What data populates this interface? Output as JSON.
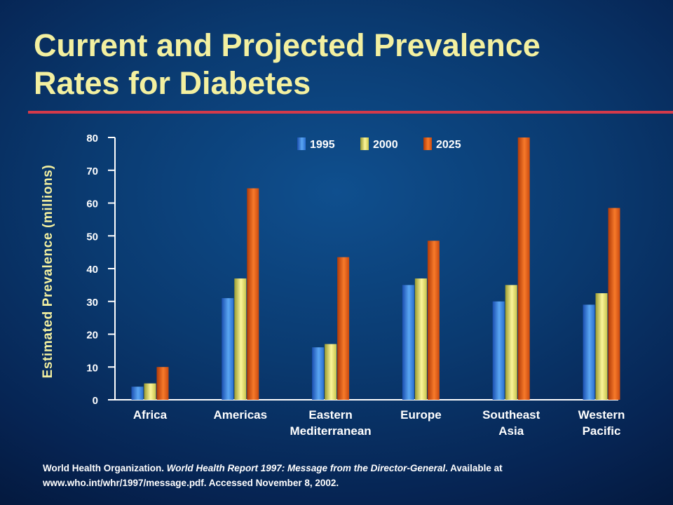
{
  "slide": {
    "title_line1": "Current and Projected Prevalence",
    "title_line2": "Rates for Diabetes"
  },
  "colors": {
    "accent_rule": "#d43a4a",
    "title": "#f3f0a0",
    "series_1995": "#3a86e0",
    "series_2000": "#e8e070",
    "series_2025": "#e8601a"
  },
  "chart_data": {
    "type": "bar",
    "title": "",
    "xlabel": "",
    "ylabel": "Estimated Prevalence (millions)",
    "ylim": [
      0,
      80
    ],
    "yticks": [
      "0",
      "10",
      "20",
      "30",
      "40",
      "50",
      "60",
      "70",
      "80"
    ],
    "categories": [
      [
        "Africa"
      ],
      [
        "Americas"
      ],
      [
        "Eastern",
        "Mediterranean"
      ],
      [
        "Europe"
      ],
      [
        "Southeast",
        "Asia"
      ],
      [
        "Western",
        "Pacific"
      ]
    ],
    "legend_position": "top",
    "grid": false,
    "series": [
      {
        "name": "1995",
        "color": "#3a86e0",
        "values": [
          4,
          31,
          16,
          35,
          30,
          29
        ]
      },
      {
        "name": "2000",
        "color": "#e8e070",
        "values": [
          5,
          37,
          17,
          37,
          35,
          32.5
        ]
      },
      {
        "name": "2025",
        "color": "#e8601a",
        "values": [
          10,
          64.5,
          43.5,
          48.5,
          80,
          58.5
        ]
      }
    ]
  },
  "source": {
    "part1": "World Health Organization. ",
    "part2_italic": "World Health Report 1997: Message from the Director-General",
    "part3": ". Available at www.who.int/whr/1997/message.pdf. Accessed November 8, 2002."
  }
}
